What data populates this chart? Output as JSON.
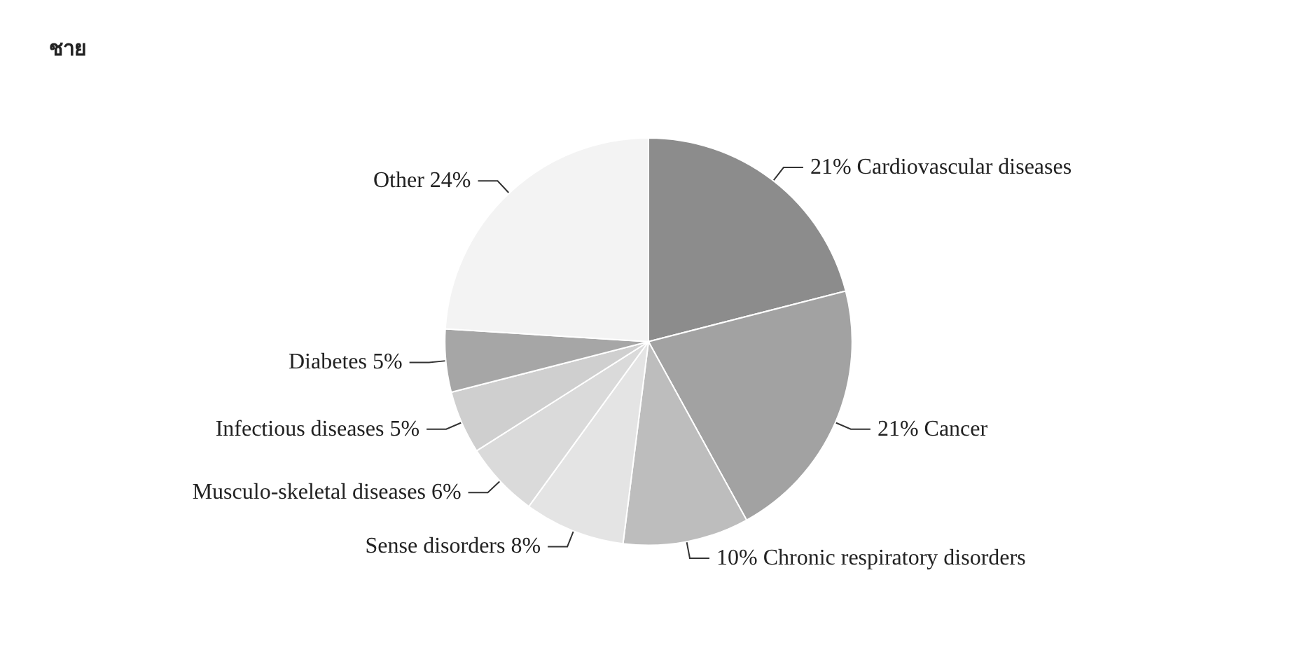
{
  "chart_data": {
    "type": "pie",
    "title": "ชาย",
    "categories": [
      "Cardiovascular diseases",
      "Cancer",
      "Chronic respiratory disorders",
      "Sense disorders",
      "Musculo-skeletal diseases",
      "Infectious diseases",
      "Diabetes",
      "Other"
    ],
    "values": [
      21,
      21,
      10,
      8,
      6,
      5,
      5,
      24
    ],
    "value_labels": [
      "21%",
      "21%",
      "10%",
      "8%",
      "6%",
      "5%",
      "5%",
      "24%"
    ],
    "colors": [
      "#8c8c8c",
      "#a2a2a2",
      "#bdbdbd",
      "#e4e4e4",
      "#dadada",
      "#cfcfcf",
      "#a6a6a6",
      "#f3f3f3"
    ],
    "legend": false
  }
}
